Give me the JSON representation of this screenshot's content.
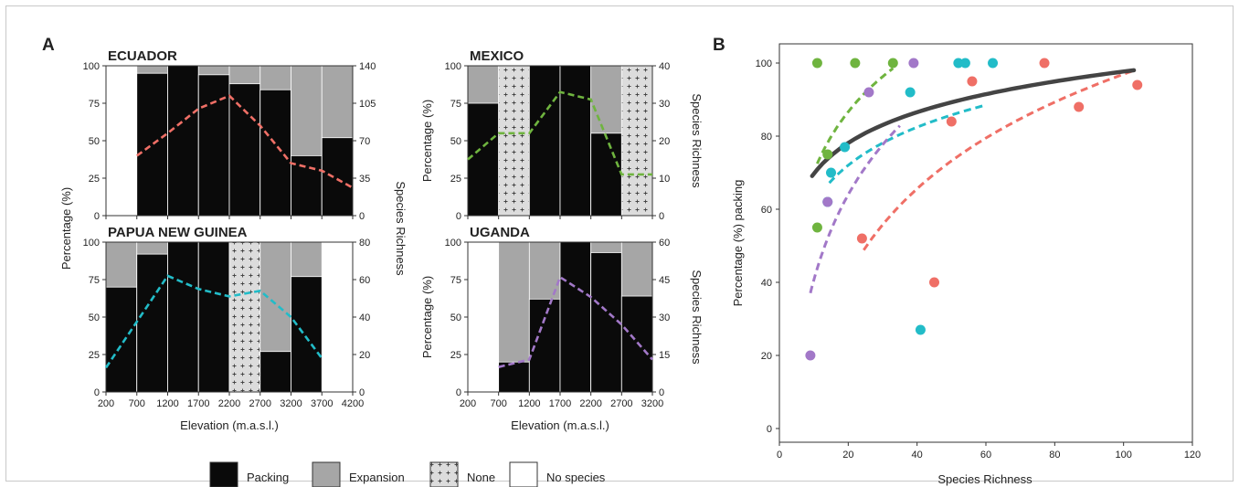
{
  "panels": {
    "a": "A",
    "b": "B"
  },
  "legend": {
    "items": [
      {
        "label": "Packing",
        "color": "#0a0a0a"
      },
      {
        "label": "Expansion",
        "color": "#a6a6a6"
      },
      {
        "label": "None",
        "color": "#dcdcdc"
      },
      {
        "label": "No species",
        "color": "#ffffff"
      }
    ]
  },
  "colors": {
    "packing": "#0a0a0a",
    "expansion": "#a6a6a6",
    "none": "#dcdcdc",
    "ecuador": "#ef6f66",
    "mexico": "#6fb43f",
    "png": "#22bcc8",
    "uganda": "#a278c8",
    "overall": "#444444"
  },
  "chart_data": [
    {
      "type": "bar",
      "title": "ECUADOR",
      "ylabel_left": "Percentage (%)",
      "ylabel_right": "Species Richness",
      "xlim": [
        200,
        4200
      ],
      "x_ticks": [
        200,
        700,
        1200,
        1700,
        2200,
        2700,
        3200,
        3700,
        4200
      ],
      "ylim_left": [
        0,
        100
      ],
      "y_ticks_left": [
        0,
        25,
        50,
        75,
        100
      ],
      "ylim_right": [
        0,
        140
      ],
      "y_ticks_right": [
        0,
        35,
        70,
        105,
        140
      ],
      "bins": [
        {
          "from": 200,
          "to": 700,
          "category": "No species",
          "packing": 0
        },
        {
          "from": 700,
          "to": 1200,
          "category": "data",
          "packing": 95
        },
        {
          "from": 1200,
          "to": 1700,
          "category": "data",
          "packing": 100
        },
        {
          "from": 1700,
          "to": 2200,
          "category": "data",
          "packing": 94
        },
        {
          "from": 2200,
          "to": 2700,
          "category": "data",
          "packing": 88
        },
        {
          "from": 2700,
          "to": 3200,
          "category": "data",
          "packing": 84
        },
        {
          "from": 3200,
          "to": 3700,
          "category": "data",
          "packing": 40
        },
        {
          "from": 3700,
          "to": 4200,
          "category": "data",
          "packing": 52
        }
      ],
      "richness": {
        "x": [
          700,
          1200,
          1700,
          2200,
          2700,
          3200,
          3700,
          4200
        ],
        "y": [
          56,
          77,
          100,
          112,
          84,
          49,
          42,
          26
        ]
      }
    },
    {
      "type": "bar",
      "title": "MEXICO",
      "ylabel_left": "Percentage (%)",
      "ylabel_right": "Species Richness",
      "xlim": [
        200,
        3200
      ],
      "x_ticks": [
        200,
        700,
        1200,
        1700,
        2200,
        2700,
        3200
      ],
      "ylim_left": [
        0,
        100
      ],
      "y_ticks_left": [
        0,
        25,
        50,
        75,
        100
      ],
      "ylim_right": [
        0,
        40
      ],
      "y_ticks_right": [
        0,
        10,
        20,
        30,
        40
      ],
      "bins": [
        {
          "from": 200,
          "to": 700,
          "category": "data",
          "packing": 75
        },
        {
          "from": 700,
          "to": 1200,
          "category": "None",
          "packing": 0
        },
        {
          "from": 1200,
          "to": 1700,
          "category": "data",
          "packing": 100
        },
        {
          "from": 1700,
          "to": 2200,
          "category": "data",
          "packing": 100
        },
        {
          "from": 2200,
          "to": 2700,
          "category": "data",
          "packing": 55
        },
        {
          "from": 2700,
          "to": 3200,
          "category": "None",
          "packing": 0
        }
      ],
      "richness": {
        "x": [
          200,
          700,
          1200,
          1700,
          2200,
          2700,
          3200
        ],
        "y": [
          15,
          22,
          22,
          33,
          31,
          11,
          11
        ]
      }
    },
    {
      "type": "bar",
      "title": "PAPUA NEW GUINEA",
      "ylabel_left": "Percentage (%)",
      "ylabel_right": "Species Richness",
      "xlim": [
        200,
        4200
      ],
      "x_ticks": [
        200,
        700,
        1200,
        1700,
        2200,
        2700,
        3200,
        3700,
        4200
      ],
      "ylim_left": [
        0,
        100
      ],
      "y_ticks_left": [
        0,
        25,
        50,
        75,
        100
      ],
      "ylim_right": [
        0,
        80
      ],
      "y_ticks_right": [
        0,
        20,
        40,
        60,
        80
      ],
      "bins": [
        {
          "from": 200,
          "to": 700,
          "category": "data",
          "packing": 70
        },
        {
          "from": 700,
          "to": 1200,
          "category": "data",
          "packing": 92
        },
        {
          "from": 1200,
          "to": 1700,
          "category": "data",
          "packing": 100
        },
        {
          "from": 1700,
          "to": 2200,
          "category": "data",
          "packing": 100
        },
        {
          "from": 2200,
          "to": 2700,
          "category": "None",
          "packing": 0
        },
        {
          "from": 2700,
          "to": 3200,
          "category": "data",
          "packing": 27
        },
        {
          "from": 3200,
          "to": 3700,
          "category": "data",
          "packing": 77
        },
        {
          "from": 3700,
          "to": 4200,
          "category": "No species",
          "packing": 0
        }
      ],
      "richness": {
        "x": [
          200,
          1200,
          1700,
          2200,
          2700,
          3200,
          3700
        ],
        "y": [
          13,
          62,
          55,
          51,
          54,
          40,
          18
        ]
      }
    },
    {
      "type": "bar",
      "title": "UGANDA",
      "ylabel_left": "Percentage (%)",
      "ylabel_right": "Species Richness",
      "xlim": [
        200,
        3200
      ],
      "x_ticks": [
        200,
        700,
        1200,
        1700,
        2200,
        2700,
        3200
      ],
      "ylim_left": [
        0,
        100
      ],
      "y_ticks_left": [
        0,
        25,
        50,
        75,
        100
      ],
      "ylim_right": [
        0,
        60
      ],
      "y_ticks_right": [
        0,
        15,
        30,
        45,
        60
      ],
      "bins": [
        {
          "from": 200,
          "to": 700,
          "category": "No species",
          "packing": 0
        },
        {
          "from": 700,
          "to": 1200,
          "category": "data",
          "packing": 20
        },
        {
          "from": 1200,
          "to": 1700,
          "category": "data",
          "packing": 62
        },
        {
          "from": 1700,
          "to": 2200,
          "category": "data",
          "packing": 100
        },
        {
          "from": 2200,
          "to": 2700,
          "category": "data",
          "packing": 93
        },
        {
          "from": 2700,
          "to": 3200,
          "category": "data",
          "packing": 64
        }
      ],
      "richness": {
        "x": [
          700,
          1200,
          1700,
          2200,
          2700,
          3200
        ],
        "y": [
          10,
          13,
          46,
          38,
          27,
          13
        ]
      }
    },
    {
      "type": "scatter",
      "xlabel": "Species Richness",
      "ylabel": "Percentage (%) packing",
      "xlim": [
        0,
        120
      ],
      "x_ticks": [
        0,
        20,
        40,
        60,
        80,
        100,
        120
      ],
      "ylim": [
        0,
        100
      ],
      "y_ticks": [
        0,
        20,
        40,
        60,
        80,
        100
      ],
      "series": [
        {
          "color": "#ef6f66",
          "points": [
            [
              24,
              52
            ],
            [
              45,
              40
            ],
            [
              50,
              84
            ],
            [
              56,
              95
            ],
            [
              77,
              100
            ],
            [
              87,
              88
            ],
            [
              104,
              94
            ]
          ],
          "fit": {
            "a": -60.6,
            "b": 34.21,
            "from": 24.5,
            "to": 103
          }
        },
        {
          "color": "#6fb43f",
          "points": [
            [
              11,
              55
            ],
            [
              11,
              100
            ],
            [
              14,
              75
            ],
            [
              22,
              100
            ],
            [
              33,
              100
            ]
          ],
          "fit": {
            "a": 15.57,
            "b": 23.73,
            "from": 11,
            "to": 33
          }
        },
        {
          "color": "#22bcc8",
          "points": [
            [
              14,
              62
            ],
            [
              15,
              70
            ],
            [
              19,
              77
            ],
            [
              38,
              92
            ],
            [
              41,
              27
            ],
            [
              52,
              100
            ],
            [
              54,
              100
            ],
            [
              62,
              100
            ]
          ],
          "fit": {
            "a": 27.1,
            "b": 15.0,
            "from": 14.5,
            "to": 60
          }
        },
        {
          "color": "#a278c8",
          "points": [
            [
              9,
              20
            ],
            [
              14,
              62
            ],
            [
              26,
              92
            ],
            [
              39,
              100
            ]
          ],
          "fit": {
            "a": -37.0,
            "b": 33.71,
            "from": 9,
            "to": 35
          }
        }
      ],
      "overall_fit": {
        "color": "#444444",
        "a": 41.77,
        "b": 12.14,
        "from": 9.5,
        "to": 103
      }
    }
  ]
}
